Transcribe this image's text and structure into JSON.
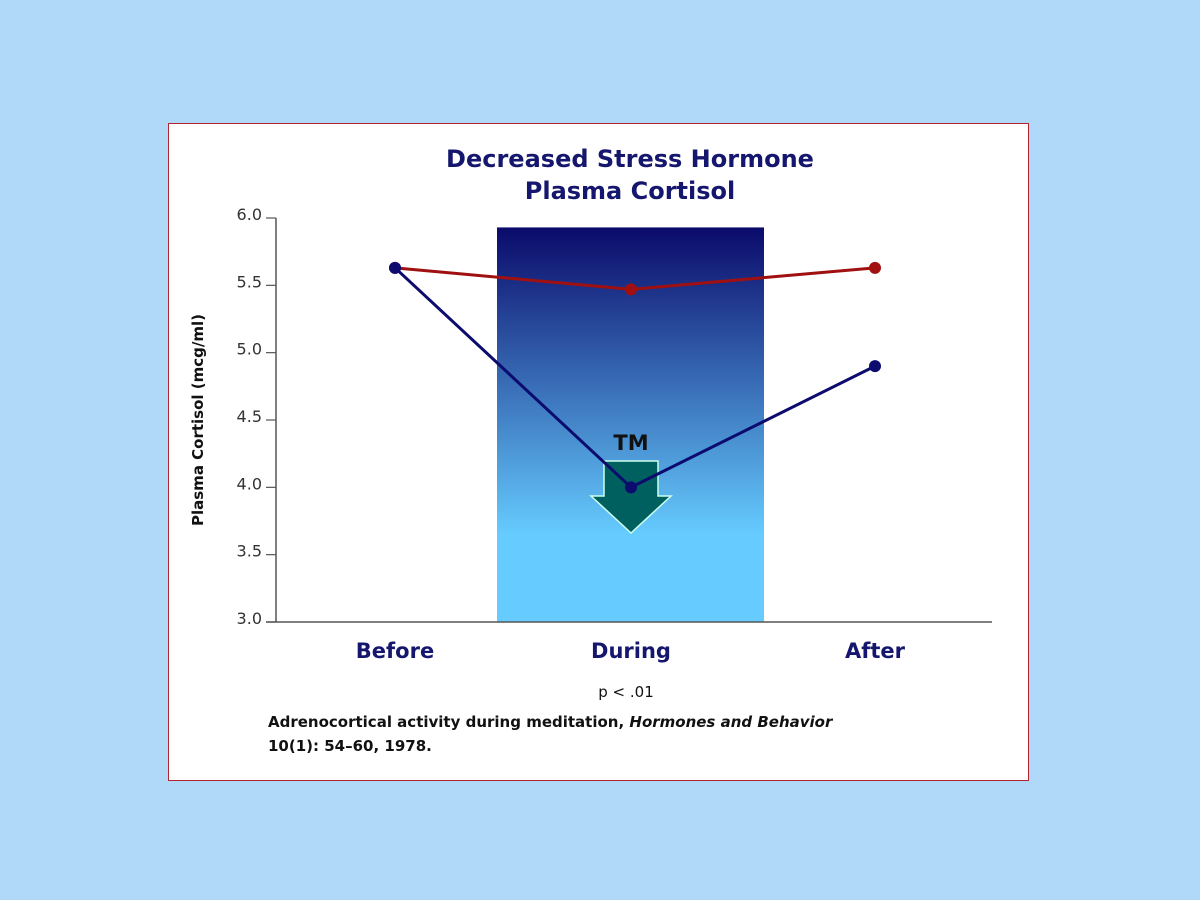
{
  "chart_data": {
    "type": "line",
    "title": "Decreased Stress Hormone",
    "subtitle": "Plasma Cortisol",
    "ylabel": "Plasma Cortisol (mcg/ml)",
    "xlabel": "",
    "categories": [
      "Before",
      "During",
      "After"
    ],
    "ylim": [
      3.0,
      6.0
    ],
    "yticks": [
      "6.0",
      "5.5",
      "5.0",
      "4.5",
      "4.0",
      "3.5",
      "3.0"
    ],
    "grid": false,
    "series": [
      {
        "values": [
          5.63,
          5.47,
          5.63
        ],
        "color": "#a01010"
      },
      {
        "values": [
          5.63,
          4.0,
          4.9
        ],
        "color": "#0c0c6e"
      }
    ],
    "highlight_band": {
      "category": "During",
      "top_value": 5.93,
      "color_top": "#0a0a6a",
      "color_bottom": "#66ccff"
    },
    "annotation": {
      "label": "TM",
      "arrow": "down",
      "arrow_color": "#006060"
    },
    "note": "p < .01",
    "citation": {
      "line1_plain": "Adrenocortical activity during meditation, ",
      "line1_italic": "Hormones and Behavior",
      "line2": "10(1): 54–60, 1978."
    }
  }
}
